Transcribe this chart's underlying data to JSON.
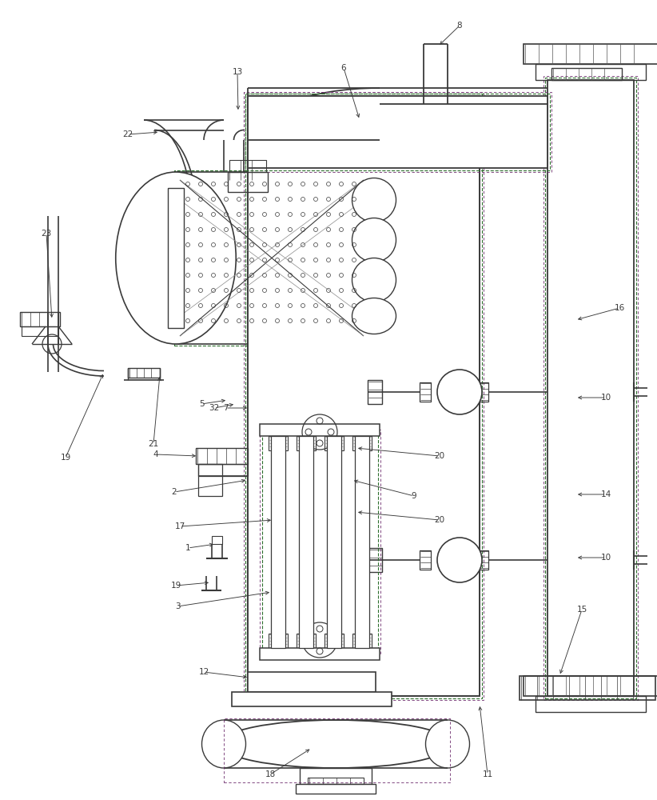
{
  "bg_color": "#ffffff",
  "lc": "#3a3a3a",
  "dc": "#5a5a5a",
  "gc": "#2d6e2d",
  "pc": "#6e2d6e",
  "label_color": "#3a3a3a"
}
